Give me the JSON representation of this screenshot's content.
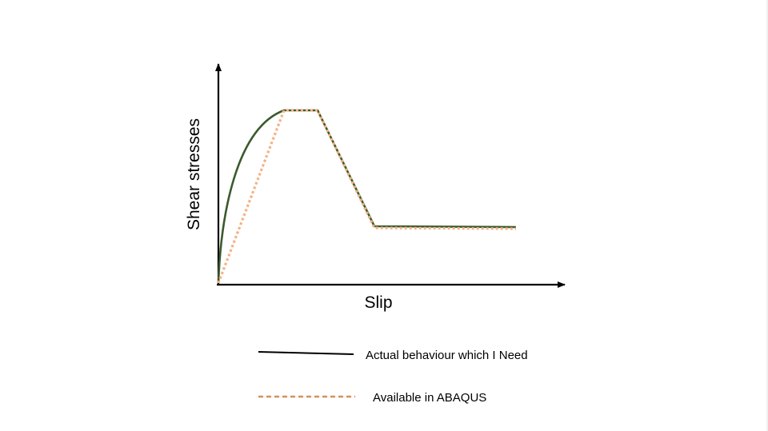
{
  "chart_data": {
    "type": "line",
    "xlabel": "Slip",
    "ylabel": "Shear stresses",
    "grid": false,
    "legend": "bottom-center",
    "series": [
      {
        "name": "Actual behaviour which I Need",
        "style": "solid",
        "color": "#3c5a2e",
        "shape": [
          "curved-rise",
          "plateau",
          "linear-drop",
          "residual-plateau"
        ]
      },
      {
        "name": "Available in ABAQUS",
        "style": "dotted",
        "color": "#f4b183",
        "shape": [
          "linear-rise",
          "plateau",
          "linear-drop",
          "residual-plateau"
        ]
      }
    ],
    "legend_sample_colors": {
      "solid": "#000000",
      "dashed": "#d88f57"
    }
  }
}
